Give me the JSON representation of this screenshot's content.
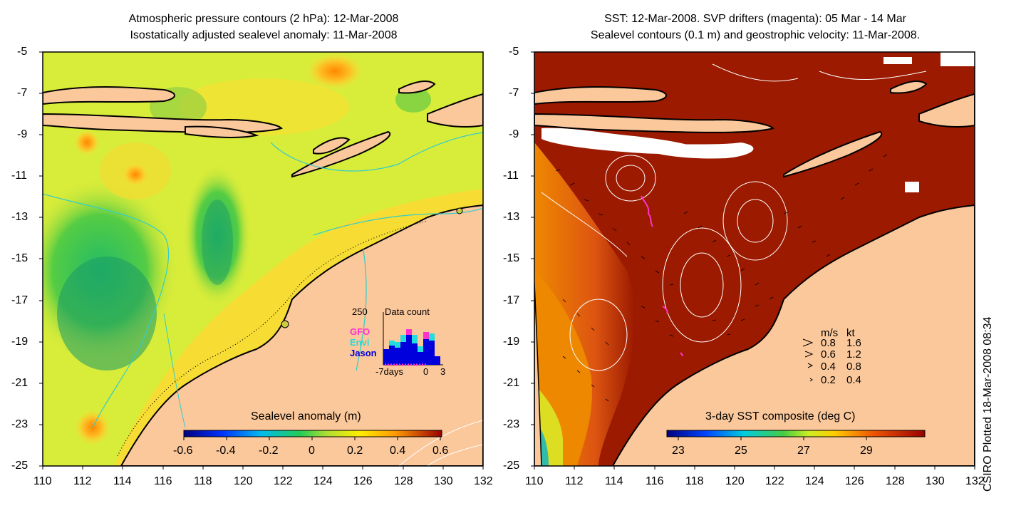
{
  "left_panel": {
    "title_line1": "Atmospheric pressure contours (2 hPa): 12-Mar-2008",
    "title_line2": "Isostatically adjusted sealevel anomaly: 11-Mar-2008",
    "colorbar_label": "Sealevel anomaly (m)",
    "colorbar_ticks": [
      "-0.6",
      "-0.4",
      "-0.2",
      "0",
      "0.2",
      "0.4",
      "0.6"
    ],
    "inset": {
      "count_label": "250",
      "title": "Data count",
      "legend": [
        {
          "name": "GFO",
          "color": "#ff33cc"
        },
        {
          "name": "Envi",
          "color": "#22dddd"
        },
        {
          "name": "Jason",
          "color": "#0000dd"
        }
      ],
      "x_labels": [
        "-7days",
        "0",
        "3"
      ]
    }
  },
  "right_panel": {
    "title_line1": "SST: 12-Mar-2008. SVP drifters (magenta): 05 Mar - 14 Mar",
    "title_line2": "Sealevel contours (0.1 m) and geostrophic velocity: 11-Mar-2008.",
    "colorbar_label": "3-day SST composite (deg C)",
    "colorbar_ticks": [
      "23",
      "25",
      "27",
      "29"
    ],
    "velocity_legend": {
      "header_ms": "m/s",
      "header_kt": "kt",
      "rows": [
        {
          "ms": "0.8",
          "kt": "1.6"
        },
        {
          "ms": "0.6",
          "kt": "1.2"
        },
        {
          "ms": "0.4",
          "kt": "0.8"
        },
        {
          "ms": "0.2",
          "kt": "0.4"
        }
      ]
    }
  },
  "axes": {
    "y_ticks": [
      "-5",
      "-7",
      "-9",
      "-11",
      "-13",
      "-15",
      "-17",
      "-19",
      "-21",
      "-23",
      "-25"
    ],
    "x_ticks": [
      "110",
      "112",
      "114",
      "116",
      "118",
      "120",
      "122",
      "124",
      "126",
      "128",
      "130",
      "132"
    ]
  },
  "credit": "CSIRO Plotted 18-Mar-2008 08:34",
  "colors": {
    "land": "#fbc89b",
    "sla_background": "#d8ec3a",
    "sst_warm": "#9b1a00"
  }
}
